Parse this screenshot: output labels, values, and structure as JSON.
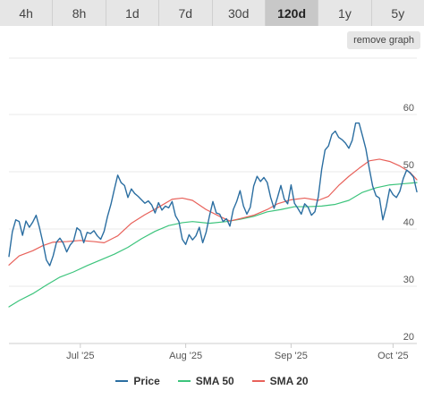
{
  "range_tabs": [
    {
      "label": "4h",
      "active": false
    },
    {
      "label": "8h",
      "active": false
    },
    {
      "label": "1d",
      "active": false
    },
    {
      "label": "7d",
      "active": false
    },
    {
      "label": "30d",
      "active": false
    },
    {
      "label": "120d",
      "active": true
    },
    {
      "label": "1y",
      "active": false
    },
    {
      "label": "5y",
      "active": false
    }
  ],
  "remove_graph_label": "remove graph",
  "chart_data": {
    "type": "line",
    "title": "",
    "xlabel": "",
    "ylabel": "",
    "x_range": [
      "2025-06-10",
      "2025-10-08"
    ],
    "ylim": [
      20,
      60
    ],
    "y_ticks": [
      20,
      30,
      40,
      50,
      60
    ],
    "x_ticks": [
      {
        "label": "Jul '25",
        "date": "2025-07-01"
      },
      {
        "label": "Aug '25",
        "date": "2025-08-01"
      },
      {
        "label": "Sep '25",
        "date": "2025-09-01"
      },
      {
        "label": "Oct '25",
        "date": "2025-10-01"
      }
    ],
    "grid": true,
    "legend_position": "bottom",
    "series": [
      {
        "name": "Price",
        "color": "#2b6ea1",
        "points": [
          [
            "2025-06-10",
            35.2
          ],
          [
            "2025-06-11",
            39.5
          ],
          [
            "2025-06-12",
            41.6
          ],
          [
            "2025-06-13",
            41.3
          ],
          [
            "2025-06-14",
            38.9
          ],
          [
            "2025-06-15",
            41.4
          ],
          [
            "2025-06-16",
            40.3
          ],
          [
            "2025-06-17",
            41.2
          ],
          [
            "2025-06-18",
            42.4
          ],
          [
            "2025-06-19",
            40.2
          ],
          [
            "2025-06-20",
            37.6
          ],
          [
            "2025-06-21",
            34.6
          ],
          [
            "2025-06-22",
            33.6
          ],
          [
            "2025-06-23",
            35.3
          ],
          [
            "2025-06-24",
            37.7
          ],
          [
            "2025-06-25",
            38.4
          ],
          [
            "2025-06-26",
            37.5
          ],
          [
            "2025-06-27",
            36.0
          ],
          [
            "2025-06-28",
            37.2
          ],
          [
            "2025-06-29",
            37.9
          ],
          [
            "2025-06-30",
            40.2
          ],
          [
            "2025-07-01",
            39.7
          ],
          [
            "2025-07-02",
            37.6
          ],
          [
            "2025-07-03",
            39.4
          ],
          [
            "2025-07-04",
            39.2
          ],
          [
            "2025-07-05",
            39.7
          ],
          [
            "2025-07-06",
            38.8
          ],
          [
            "2025-07-07",
            38.2
          ],
          [
            "2025-07-08",
            39.6
          ],
          [
            "2025-07-09",
            42.2
          ],
          [
            "2025-07-10",
            44.3
          ],
          [
            "2025-07-11",
            46.9
          ],
          [
            "2025-07-12",
            49.4
          ],
          [
            "2025-07-13",
            48.1
          ],
          [
            "2025-07-14",
            47.6
          ],
          [
            "2025-07-15",
            45.5
          ],
          [
            "2025-07-16",
            47.0
          ],
          [
            "2025-07-17",
            46.2
          ],
          [
            "2025-07-18",
            45.7
          ],
          [
            "2025-07-19",
            45.1
          ],
          [
            "2025-07-20",
            44.5
          ],
          [
            "2025-07-21",
            44.9
          ],
          [
            "2025-07-22",
            44.2
          ],
          [
            "2025-07-23",
            42.8
          ],
          [
            "2025-07-24",
            44.6
          ],
          [
            "2025-07-25",
            43.3
          ],
          [
            "2025-07-26",
            44.0
          ],
          [
            "2025-07-27",
            43.7
          ],
          [
            "2025-07-28",
            44.8
          ],
          [
            "2025-07-29",
            42.3
          ],
          [
            "2025-07-30",
            41.3
          ],
          [
            "2025-07-31",
            38.2
          ],
          [
            "2025-08-01",
            37.3
          ],
          [
            "2025-08-02",
            39.0
          ],
          [
            "2025-08-03",
            38.1
          ],
          [
            "2025-08-04",
            38.8
          ],
          [
            "2025-08-05",
            40.3
          ],
          [
            "2025-08-06",
            37.6
          ],
          [
            "2025-08-07",
            39.4
          ],
          [
            "2025-08-08",
            42.3
          ],
          [
            "2025-08-09",
            44.8
          ],
          [
            "2025-08-10",
            42.8
          ],
          [
            "2025-08-11",
            42.6
          ],
          [
            "2025-08-12",
            41.3
          ],
          [
            "2025-08-13",
            41.8
          ],
          [
            "2025-08-14",
            40.5
          ],
          [
            "2025-08-15",
            43.4
          ],
          [
            "2025-08-16",
            44.8
          ],
          [
            "2025-08-17",
            46.7
          ],
          [
            "2025-08-18",
            44.0
          ],
          [
            "2025-08-19",
            42.6
          ],
          [
            "2025-08-20",
            43.8
          ],
          [
            "2025-08-21",
            47.5
          ],
          [
            "2025-08-22",
            49.2
          ],
          [
            "2025-08-23",
            48.3
          ],
          [
            "2025-08-24",
            49.0
          ],
          [
            "2025-08-25",
            48.1
          ],
          [
            "2025-08-26",
            45.5
          ],
          [
            "2025-08-27",
            43.6
          ],
          [
            "2025-08-28",
            45.5
          ],
          [
            "2025-08-29",
            47.6
          ],
          [
            "2025-08-30",
            45.2
          ],
          [
            "2025-08-31",
            44.4
          ],
          [
            "2025-09-01",
            47.7
          ],
          [
            "2025-09-02",
            44.5
          ],
          [
            "2025-09-03",
            43.6
          ],
          [
            "2025-09-04",
            42.6
          ],
          [
            "2025-09-05",
            44.4
          ],
          [
            "2025-09-06",
            43.8
          ],
          [
            "2025-09-07",
            42.4
          ],
          [
            "2025-09-08",
            43.0
          ],
          [
            "2025-09-09",
            45.6
          ],
          [
            "2025-09-10",
            50.4
          ],
          [
            "2025-09-11",
            53.8
          ],
          [
            "2025-09-12",
            54.5
          ],
          [
            "2025-09-13",
            56.5
          ],
          [
            "2025-09-14",
            57.1
          ],
          [
            "2025-09-15",
            56.0
          ],
          [
            "2025-09-16",
            55.6
          ],
          [
            "2025-09-17",
            55.0
          ],
          [
            "2025-09-18",
            54.1
          ],
          [
            "2025-09-19",
            55.5
          ],
          [
            "2025-09-20",
            58.5
          ],
          [
            "2025-09-21",
            58.5
          ],
          [
            "2025-09-22",
            56.3
          ],
          [
            "2025-09-23",
            54.0
          ],
          [
            "2025-09-24",
            50.6
          ],
          [
            "2025-09-25",
            47.5
          ],
          [
            "2025-09-26",
            45.8
          ],
          [
            "2025-09-27",
            45.4
          ],
          [
            "2025-09-28",
            41.6
          ],
          [
            "2025-09-29",
            43.9
          ],
          [
            "2025-09-30",
            47.0
          ],
          [
            "2025-10-01",
            46.0
          ],
          [
            "2025-10-02",
            45.5
          ],
          [
            "2025-10-03",
            46.6
          ],
          [
            "2025-10-04",
            48.8
          ],
          [
            "2025-10-05",
            50.3
          ],
          [
            "2025-10-06",
            49.8
          ],
          [
            "2025-10-07",
            49.1
          ],
          [
            "2025-10-08",
            46.5
          ]
        ]
      },
      {
        "name": "SMA 50",
        "color": "#3cc47c",
        "points": [
          [
            "2025-06-10",
            26.4
          ],
          [
            "2025-06-13",
            27.5
          ],
          [
            "2025-06-17",
            28.7
          ],
          [
            "2025-06-21",
            30.2
          ],
          [
            "2025-06-25",
            31.6
          ],
          [
            "2025-06-29",
            32.5
          ],
          [
            "2025-07-03",
            33.6
          ],
          [
            "2025-07-07",
            34.6
          ],
          [
            "2025-07-11",
            35.6
          ],
          [
            "2025-07-15",
            36.8
          ],
          [
            "2025-07-19",
            38.3
          ],
          [
            "2025-07-23",
            39.6
          ],
          [
            "2025-07-27",
            40.6
          ],
          [
            "2025-07-31",
            41.1
          ],
          [
            "2025-08-03",
            41.3
          ],
          [
            "2025-08-08",
            41.0
          ],
          [
            "2025-08-13",
            41.3
          ],
          [
            "2025-08-17",
            41.7
          ],
          [
            "2025-08-21",
            42.2
          ],
          [
            "2025-08-25",
            43.0
          ],
          [
            "2025-08-29",
            43.4
          ],
          [
            "2025-09-02",
            43.9
          ],
          [
            "2025-09-06",
            43.9
          ],
          [
            "2025-09-10",
            44.0
          ],
          [
            "2025-09-14",
            44.3
          ],
          [
            "2025-09-18",
            45.0
          ],
          [
            "2025-09-22",
            46.4
          ],
          [
            "2025-09-26",
            47.2
          ],
          [
            "2025-09-30",
            47.7
          ],
          [
            "2025-10-04",
            47.9
          ],
          [
            "2025-10-08",
            48.1
          ]
        ]
      },
      {
        "name": "SMA 20",
        "color": "#e8615a",
        "points": [
          [
            "2025-06-10",
            33.7
          ],
          [
            "2025-06-13",
            35.3
          ],
          [
            "2025-06-17",
            36.2
          ],
          [
            "2025-06-20",
            37.1
          ],
          [
            "2025-06-23",
            37.7
          ],
          [
            "2025-06-27",
            37.8
          ],
          [
            "2025-07-01",
            38.0
          ],
          [
            "2025-07-05",
            37.8
          ],
          [
            "2025-07-08",
            37.6
          ],
          [
            "2025-07-12",
            38.8
          ],
          [
            "2025-07-16",
            41.0
          ],
          [
            "2025-07-20",
            42.5
          ],
          [
            "2025-07-24",
            43.8
          ],
          [
            "2025-07-28",
            45.2
          ],
          [
            "2025-07-31",
            45.4
          ],
          [
            "2025-08-03",
            45.0
          ],
          [
            "2025-08-07",
            43.4
          ],
          [
            "2025-08-11",
            42.2
          ],
          [
            "2025-08-14",
            41.4
          ],
          [
            "2025-08-17",
            41.8
          ],
          [
            "2025-08-21",
            42.4
          ],
          [
            "2025-08-25",
            43.4
          ],
          [
            "2025-08-28",
            44.4
          ],
          [
            "2025-09-01",
            45.1
          ],
          [
            "2025-09-05",
            45.4
          ],
          [
            "2025-09-09",
            45.0
          ],
          [
            "2025-09-12",
            45.7
          ],
          [
            "2025-09-15",
            47.6
          ],
          [
            "2025-09-18",
            49.2
          ],
          [
            "2025-09-21",
            50.6
          ],
          [
            "2025-09-24",
            51.9
          ],
          [
            "2025-09-27",
            52.2
          ],
          [
            "2025-09-30",
            51.8
          ],
          [
            "2025-10-03",
            51.0
          ],
          [
            "2025-10-06",
            49.9
          ],
          [
            "2025-10-08",
            48.6
          ]
        ]
      }
    ]
  }
}
